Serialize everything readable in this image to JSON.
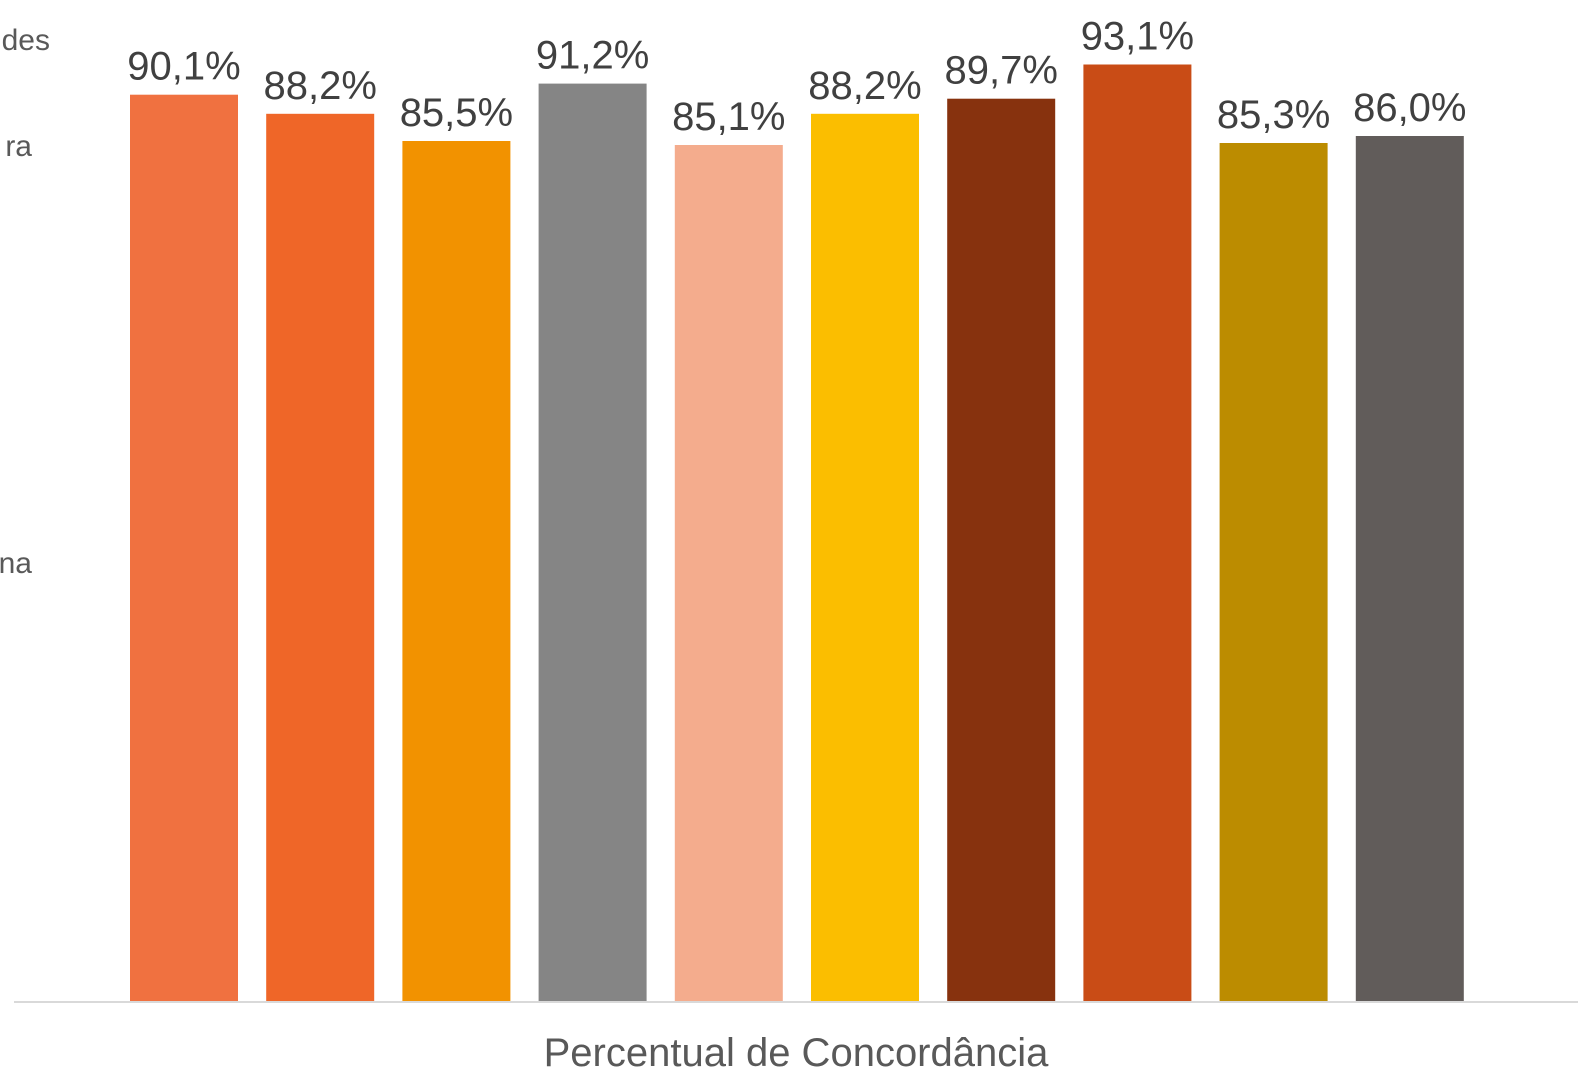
{
  "chart_data": {
    "type": "bar",
    "categories": [
      "Percentual de Concordância"
    ],
    "xlabel": "Percentual de Concordância",
    "ylim": [
      0,
      100
    ],
    "grid": false,
    "legend_position": "left",
    "legend_fragments": [
      "des",
      "ra",
      "na"
    ],
    "series": [
      {
        "values": [
          90.1
        ],
        "label": "90,1%",
        "color": "#F07140"
      },
      {
        "values": [
          88.2
        ],
        "label": "88,2%",
        "color": "#EF6628"
      },
      {
        "values": [
          85.5
        ],
        "label": "85,5%",
        "color": "#F29200"
      },
      {
        "values": [
          91.2
        ],
        "label": "91,2%",
        "color": "#858585"
      },
      {
        "values": [
          85.1
        ],
        "label": "85,1%",
        "color": "#F4AC8D"
      },
      {
        "values": [
          88.2
        ],
        "label": "88,2%",
        "color": "#FBBE00"
      },
      {
        "values": [
          89.7
        ],
        "label": "89,7%",
        "color": "#87320E"
      },
      {
        "values": [
          93.1
        ],
        "label": "93,1%",
        "color": "#C94C16"
      },
      {
        "values": [
          85.3
        ],
        "label": "85,3%",
        "color": "#BC8C00"
      },
      {
        "values": [
          86.0
        ],
        "label": "86,0%",
        "color": "#615C5A"
      }
    ]
  }
}
